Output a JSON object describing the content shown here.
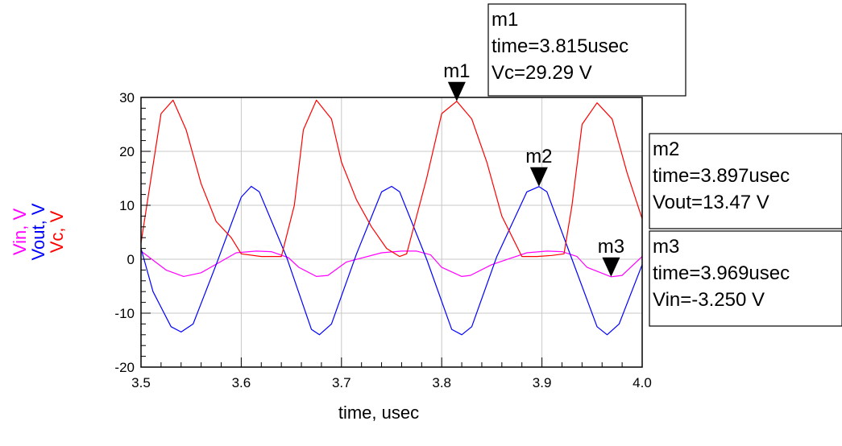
{
  "chart_data": {
    "type": "line",
    "xlabel": "time, usec",
    "xlim": [
      3.5,
      4.0
    ],
    "ylim": [
      -20,
      30
    ],
    "x_ticks": [
      "3.5",
      "3.6",
      "3.7",
      "3.8",
      "3.9",
      "4.0"
    ],
    "y_ticks": [
      "30",
      "20",
      "10",
      "0",
      "-10",
      "-20"
    ],
    "grid": true,
    "ylabels": [
      {
        "text": "Vin, V",
        "color": "#ff00ff"
      },
      {
        "text": "Vout, V",
        "color": "#0000ff"
      },
      {
        "text": "Vc, V",
        "color": "#ff0000"
      }
    ],
    "series": [
      {
        "name": "Vin",
        "color": "#ff00ff",
        "x": [
          3.5,
          3.525,
          3.5425,
          3.56,
          3.595,
          3.615,
          3.63,
          3.647,
          3.6575,
          3.675,
          3.6865,
          3.705,
          3.74,
          3.76,
          3.775,
          3.789,
          3.8,
          3.82,
          3.8285,
          3.85,
          3.885,
          3.905,
          3.92,
          3.935,
          3.945,
          3.969,
          3.98,
          4.0
        ],
        "values": [
          1.5,
          -2.0,
          -3.2,
          -2.5,
          1.2,
          1.5,
          1.4,
          0.3,
          -1.5,
          -3.2,
          -3.0,
          -0.5,
          1.2,
          1.5,
          1.5,
          0.8,
          -1.5,
          -3.2,
          -3.0,
          -1.0,
          1.2,
          1.5,
          1.4,
          0.5,
          -1.5,
          -3.25,
          -3.0,
          0.5
        ]
      },
      {
        "name": "Vout",
        "color": "#0000ff",
        "x": [
          3.5,
          3.512,
          3.53,
          3.54,
          3.552,
          3.575,
          3.6,
          3.61,
          3.618,
          3.645,
          3.67,
          3.678,
          3.69,
          3.715,
          3.74,
          3.75,
          3.758,
          3.785,
          3.81,
          3.82,
          3.83,
          3.855,
          3.885,
          3.897,
          3.905,
          3.93,
          3.955,
          3.965,
          3.977,
          4.0
        ],
        "values": [
          2.0,
          -6.0,
          -12.5,
          -13.5,
          -12.0,
          -1.0,
          11.5,
          13.5,
          12.5,
          0.5,
          -13.0,
          -14.0,
          -12.0,
          1.0,
          12.5,
          13.5,
          12.5,
          0.0,
          -13.0,
          -14.0,
          -12.5,
          0.5,
          12.5,
          13.47,
          12.5,
          0.0,
          -12.5,
          -14.0,
          -12.0,
          -1.0
        ]
      },
      {
        "name": "Vc",
        "color": "#ff0000",
        "x": [
          3.5,
          3.51,
          3.52,
          3.532,
          3.545,
          3.56,
          3.575,
          3.59,
          3.6,
          3.62,
          3.64,
          3.653,
          3.662,
          3.675,
          3.69,
          3.7,
          3.715,
          3.73,
          3.745,
          3.758,
          3.765,
          3.785,
          3.8,
          3.815,
          3.83,
          3.845,
          3.86,
          3.88,
          3.895,
          3.91,
          3.922,
          3.93,
          3.94,
          3.955,
          3.97,
          3.985,
          4.0
        ],
        "values": [
          3.0,
          15.0,
          27.0,
          29.5,
          24.0,
          14.0,
          7.0,
          4.0,
          1.0,
          0.5,
          0.5,
          10.0,
          24.0,
          29.5,
          26.0,
          18.0,
          11.0,
          6.0,
          2.0,
          0.5,
          1.0,
          15.0,
          27.0,
          29.29,
          26.0,
          18.0,
          8.0,
          0.5,
          0.5,
          0.7,
          1.0,
          10.0,
          25.0,
          29.0,
          26.0,
          16.0,
          7.5
        ]
      }
    ],
    "markers": [
      {
        "name": "m1",
        "x": 3.815,
        "y": 29.29,
        "lines": [
          "m1",
          "time=3.815usec",
          "Vc=29.29 V"
        ]
      },
      {
        "name": "m2",
        "x": 3.897,
        "y": 13.47,
        "lines": [
          "m2",
          "time=3.897usec",
          "Vout=13.47 V"
        ]
      },
      {
        "name": "m3",
        "x": 3.969,
        "y": -3.25,
        "lines": [
          "m3",
          "time=3.969usec",
          "Vin=-3.250 V"
        ]
      }
    ]
  }
}
